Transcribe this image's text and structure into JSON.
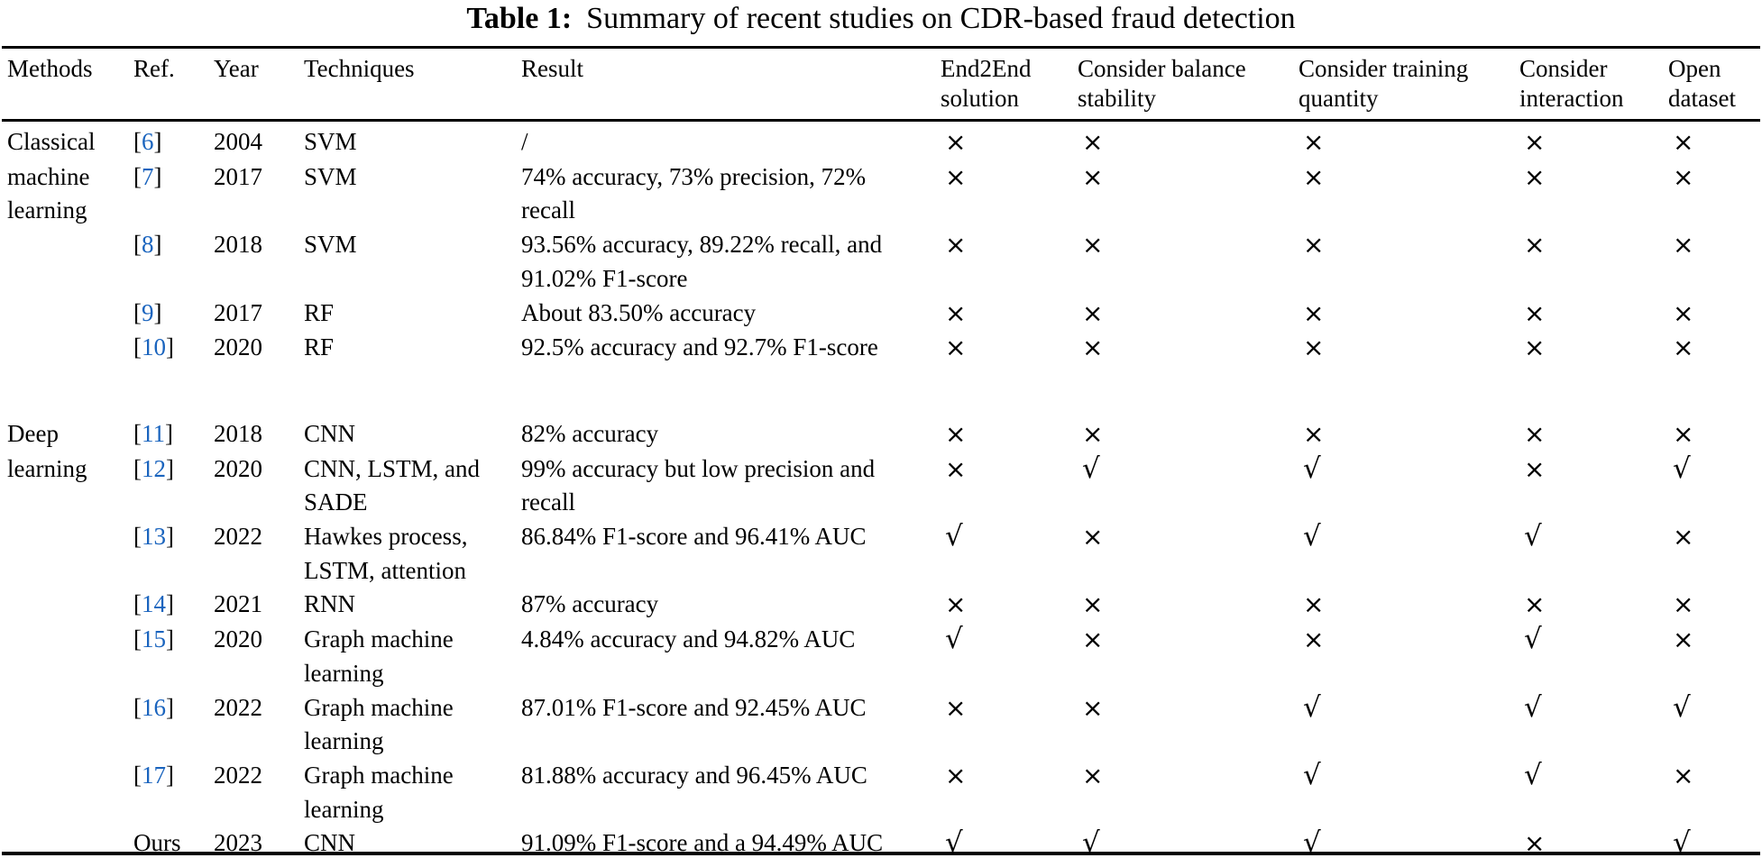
{
  "title": {
    "label": "Table 1:",
    "text": "Summary of recent studies on CDR-based fraud detection"
  },
  "colors": {
    "link_blue": "#1a64be",
    "text": "#000000",
    "rule": "#000000",
    "background": "#ffffff"
  },
  "symbols": {
    "bracket_open": "[",
    "bracket_close": "]",
    "check": "√",
    "cross": "×"
  },
  "columns": [
    {
      "id": "methods",
      "label": "Methods"
    },
    {
      "id": "ref",
      "label": "Ref."
    },
    {
      "id": "year",
      "label": "Year"
    },
    {
      "id": "techniques",
      "label": "Techniques"
    },
    {
      "id": "result",
      "label": "Result"
    },
    {
      "id": "end2end-solution",
      "label": "End2End\nsolution"
    },
    {
      "id": "consider-balance-stability",
      "label": "Consider balance\nstability"
    },
    {
      "id": "consider-training-quantity",
      "label": "Consider training\nquantity"
    },
    {
      "id": "consider-interaction",
      "label": "Consider\ninteraction"
    },
    {
      "id": "open-dataset",
      "label": "Open\ndataset"
    }
  ],
  "rows": [
    {
      "methods": "Classical",
      "ref": "6",
      "ref_is_citation": true,
      "year": "2004",
      "techniques": "SVM",
      "result": "/",
      "flags": [
        "cross",
        "cross",
        "cross",
        "cross",
        "cross"
      ],
      "spacer_after": false
    },
    {
      "methods": "machine\nlearning",
      "ref": "7",
      "ref_is_citation": true,
      "year": "2017",
      "techniques": "SVM",
      "result": "74% accuracy, 73% precision, 72%\nrecall",
      "flags": [
        "cross",
        "cross",
        "cross",
        "cross",
        "cross"
      ],
      "spacer_after": false
    },
    {
      "methods": "",
      "ref": "8",
      "ref_is_citation": true,
      "year": "2018",
      "techniques": "SVM",
      "result": "93.56% accuracy, 89.22% recall, and\n91.02% F1-score",
      "flags": [
        "cross",
        "cross",
        "cross",
        "cross",
        "cross"
      ],
      "spacer_after": false
    },
    {
      "methods": "",
      "ref": "9",
      "ref_is_citation": true,
      "year": "2017",
      "techniques": "RF",
      "result": "About 83.50% accuracy",
      "flags": [
        "cross",
        "cross",
        "cross",
        "cross",
        "cross"
      ],
      "spacer_after": false
    },
    {
      "methods": "",
      "ref": "10",
      "ref_is_citation": true,
      "year": "2020",
      "techniques": "RF",
      "result": "92.5% accuracy and 92.7% F1-score",
      "flags": [
        "cross",
        "cross",
        "cross",
        "cross",
        "cross"
      ],
      "spacer_after": true
    },
    {
      "methods": "Deep",
      "ref": "11",
      "ref_is_citation": true,
      "year": "2018",
      "techniques": "CNN",
      "result": "82% accuracy",
      "flags": [
        "cross",
        "cross",
        "cross",
        "cross",
        "cross"
      ],
      "spacer_after": false
    },
    {
      "methods": "learning",
      "ref": "12",
      "ref_is_citation": true,
      "year": "2020",
      "techniques": "CNN, LSTM, and\nSADE",
      "result": "99% accuracy but low precision and\nrecall",
      "flags": [
        "cross",
        "check",
        "check",
        "cross",
        "check"
      ],
      "spacer_after": false
    },
    {
      "methods": "",
      "ref": "13",
      "ref_is_citation": true,
      "year": "2022",
      "techniques": "Hawkes process,\nLSTM, attention",
      "result": "86.84% F1-score and 96.41% AUC",
      "flags": [
        "check",
        "cross",
        "check",
        "check",
        "cross"
      ],
      "spacer_after": false
    },
    {
      "methods": "",
      "ref": "14",
      "ref_is_citation": true,
      "year": "2021",
      "techniques": "RNN",
      "result": "87% accuracy",
      "flags": [
        "cross",
        "cross",
        "cross",
        "cross",
        "cross"
      ],
      "spacer_after": false
    },
    {
      "methods": "",
      "ref": "15",
      "ref_is_citation": true,
      "year": "2020",
      "techniques": "Graph machine\nlearning",
      "result": "4.84% accuracy and 94.82% AUC",
      "flags": [
        "check",
        "cross",
        "cross",
        "check",
        "cross"
      ],
      "spacer_after": false
    },
    {
      "methods": "",
      "ref": "16",
      "ref_is_citation": true,
      "year": "2022",
      "techniques": "Graph machine\nlearning",
      "result": "87.01% F1-score and 92.45% AUC",
      "flags": [
        "cross",
        "cross",
        "check",
        "check",
        "check"
      ],
      "spacer_after": false
    },
    {
      "methods": "",
      "ref": "17",
      "ref_is_citation": true,
      "year": "2022",
      "techniques": "Graph machine\nlearning",
      "result": "81.88% accuracy and 96.45% AUC",
      "flags": [
        "cross",
        "cross",
        "check",
        "check",
        "cross"
      ],
      "spacer_after": false
    },
    {
      "methods": "",
      "ref": "Ours",
      "ref_is_citation": false,
      "year": "2023",
      "techniques": "CNN",
      "result": "91.09% F1-score and a 94.49% AUC",
      "flags": [
        "check",
        "check",
        "check",
        "cross",
        "check"
      ],
      "spacer_after": false
    }
  ]
}
